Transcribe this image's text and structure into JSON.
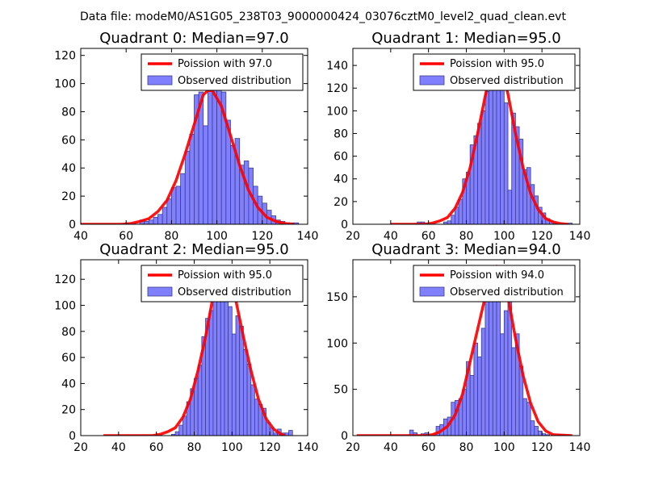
{
  "suptitle": "Data file: modeM0/AS1G05_238T03_9000000424_03076cztM0_level2_quad_clean.evt",
  "colors": {
    "hist_fill": "#8080ff",
    "hist_edge": "#3c3c8c",
    "poisson_line": "#ff0000",
    "axes": "#000000"
  },
  "chart_data": [
    {
      "type": "bar",
      "title": "Quadrant 0: Median=97.0",
      "xlim": [
        40,
        140
      ],
      "ylim": [
        0,
        125
      ],
      "xticks": [
        40,
        60,
        80,
        100,
        120,
        140
      ],
      "yticks": [
        0,
        20,
        40,
        60,
        80,
        100,
        120
      ],
      "legend": {
        "placement": "top-right",
        "line_label": "Poission with 97.0",
        "bar_label": "Observed distribution"
      },
      "bin_width": 2,
      "hist_x": [
        40,
        42,
        44,
        46,
        48,
        50,
        52,
        54,
        56,
        58,
        60,
        62,
        64,
        66,
        68,
        70,
        72,
        74,
        76,
        78,
        80,
        82,
        84,
        86,
        88,
        90,
        92,
        94,
        96,
        98,
        100,
        102,
        104,
        106,
        108,
        110,
        112,
        114,
        116,
        118,
        120,
        122,
        124,
        126,
        128,
        130,
        132,
        134
      ],
      "hist_y": [
        0,
        0,
        0,
        0,
        0,
        0,
        0,
        0,
        0,
        0,
        1,
        0,
        0,
        3,
        2,
        3,
        5,
        7,
        12,
        18,
        26,
        27,
        36,
        52,
        64,
        92,
        94,
        70,
        103,
        102,
        104,
        94,
        74,
        56,
        61,
        42,
        45,
        40,
        27,
        20,
        15,
        10,
        6,
        3,
        2,
        1,
        1,
        1
      ],
      "poisson_x": [
        40,
        46,
        52,
        58,
        62,
        66,
        70,
        74,
        78,
        82,
        86,
        90,
        94,
        96,
        98,
        102,
        106,
        110,
        114,
        118,
        122,
        126,
        130,
        134
      ],
      "poisson_y": [
        0,
        0,
        0,
        0,
        0.5,
        2,
        4,
        9,
        17,
        31,
        50,
        71,
        92,
        95,
        95,
        84,
        63,
        42,
        24,
        12,
        5,
        2,
        0.5,
        0
      ]
    },
    {
      "type": "bar",
      "title": "Quadrant 1: Median=95.0",
      "xlim": [
        20,
        140
      ],
      "ylim": [
        0,
        155
      ],
      "xticks": [
        20,
        40,
        60,
        80,
        100,
        120,
        140
      ],
      "yticks": [
        0,
        20,
        40,
        60,
        80,
        100,
        120,
        140
      ],
      "legend": {
        "placement": "top-right",
        "line_label": "Poission with 95.0",
        "bar_label": "Observed distribution"
      },
      "bin_width": 2,
      "hist_x": [
        54,
        56,
        58,
        60,
        62,
        64,
        66,
        68,
        70,
        72,
        74,
        76,
        78,
        80,
        82,
        84,
        86,
        88,
        90,
        92,
        94,
        96,
        98,
        100,
        102,
        104,
        106,
        108,
        110,
        112,
        114,
        116,
        118,
        120,
        122,
        124,
        126,
        128,
        130,
        132,
        134
      ],
      "hist_y": [
        2,
        2,
        1,
        0,
        0,
        0,
        0,
        2,
        3,
        8,
        15,
        22,
        40,
        46,
        70,
        78,
        89,
        100,
        117,
        135,
        150,
        141,
        140,
        107,
        30,
        98,
        86,
        75,
        48,
        50,
        35,
        25,
        15,
        10,
        5,
        3,
        1,
        0,
        0,
        0,
        1
      ],
      "poisson_x": [
        40,
        50,
        58,
        62,
        66,
        70,
        74,
        78,
        82,
        86,
        90,
        94,
        96,
        98,
        102,
        106,
        110,
        114,
        118,
        122,
        126,
        130,
        134
      ],
      "poisson_y": [
        0,
        0,
        0,
        1,
        3,
        6,
        14,
        28,
        50,
        80,
        113,
        142,
        146,
        142,
        115,
        80,
        50,
        27,
        13,
        5,
        2,
        0.5,
        0
      ]
    },
    {
      "type": "bar",
      "title": "Quadrant 2: Median=95.0",
      "xlim": [
        20,
        140
      ],
      "ylim": [
        0,
        135
      ],
      "xticks": [
        20,
        40,
        60,
        80,
        100,
        120,
        140
      ],
      "yticks": [
        0,
        20,
        40,
        60,
        80,
        100,
        120
      ],
      "legend": {
        "placement": "top-right",
        "line_label": "Poission with 95.0",
        "bar_label": "Observed distribution"
      },
      "bin_width": 2,
      "hist_x": [
        56,
        58,
        60,
        62,
        64,
        66,
        68,
        70,
        72,
        74,
        76,
        78,
        80,
        82,
        84,
        86,
        88,
        90,
        92,
        94,
        96,
        98,
        100,
        102,
        104,
        106,
        108,
        110,
        112,
        114,
        116,
        118,
        120,
        122,
        124,
        126,
        128,
        130
      ],
      "hist_y": [
        0,
        0,
        0,
        0,
        0,
        0,
        1,
        3,
        8,
        15,
        26,
        36,
        44,
        54,
        76,
        90,
        96,
        104,
        120,
        123,
        113,
        99,
        78,
        92,
        84,
        66,
        55,
        39,
        28,
        24,
        21,
        10,
        6,
        2,
        5,
        2,
        2,
        4
      ],
      "poisson_x": [
        32,
        48,
        58,
        62,
        66,
        70,
        74,
        78,
        82,
        86,
        90,
        94,
        96,
        98,
        102,
        106,
        110,
        114,
        118,
        122,
        126,
        128
      ],
      "poisson_y": [
        0,
        0,
        0,
        1,
        3,
        6,
        14,
        28,
        50,
        76,
        107,
        125,
        125,
        120,
        104,
        76,
        50,
        28,
        13,
        5,
        1,
        0
      ]
    },
    {
      "type": "bar",
      "title": "Quadrant 3: Median=94.0",
      "xlim": [
        20,
        140
      ],
      "ylim": [
        0,
        190
      ],
      "xticks": [
        20,
        40,
        60,
        80,
        100,
        120,
        140
      ],
      "yticks": [
        0,
        50,
        100,
        150
      ],
      "legend": {
        "placement": "top-right",
        "line_label": "Poission with 94.0",
        "bar_label": "Observed distribution"
      },
      "bin_width": 2,
      "hist_x": [
        50,
        52,
        54,
        56,
        58,
        60,
        62,
        64,
        66,
        68,
        70,
        72,
        74,
        76,
        78,
        80,
        82,
        84,
        86,
        88,
        90,
        92,
        94,
        96,
        98,
        100,
        102,
        104,
        106,
        108,
        110,
        112,
        114,
        116,
        118,
        120,
        122,
        124,
        126,
        128,
        130
      ],
      "hist_y": [
        6,
        3,
        0,
        2,
        3,
        0,
        0,
        10,
        12,
        18,
        20,
        36,
        38,
        40,
        50,
        80,
        65,
        100,
        85,
        116,
        150,
        154,
        170,
        183,
        110,
        135,
        160,
        95,
        110,
        75,
        40,
        36,
        16,
        10,
        5,
        2,
        1,
        0,
        0,
        1,
        1
      ],
      "poisson_x": [
        22,
        50,
        58,
        62,
        66,
        70,
        74,
        78,
        82,
        86,
        90,
        94,
        96,
        98,
        102,
        106,
        110,
        114,
        118,
        122,
        126,
        130,
        136
      ],
      "poisson_y": [
        0,
        0,
        0,
        1,
        4,
        10,
        22,
        45,
        80,
        115,
        150,
        175,
        183,
        178,
        150,
        105,
        65,
        35,
        15,
        5,
        1,
        0.5,
        0
      ]
    }
  ]
}
